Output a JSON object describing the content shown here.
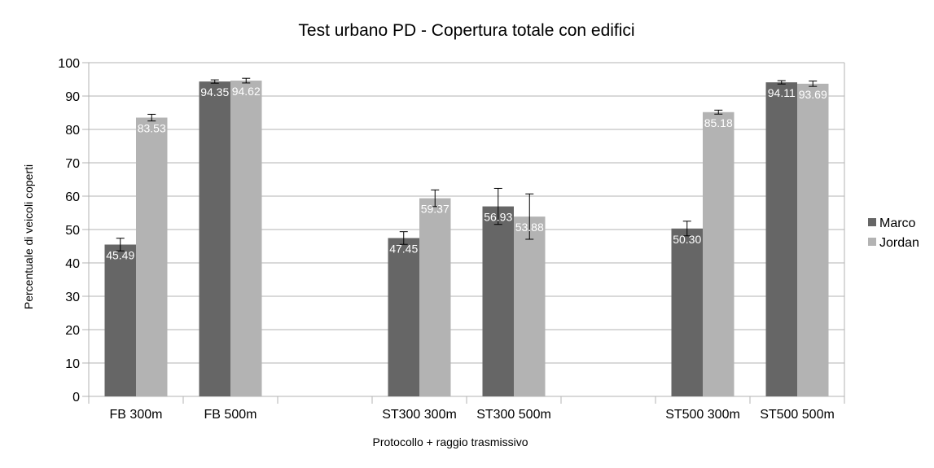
{
  "chart_data": {
    "type": "bar",
    "title": "Test urbano PD - Copertura totale con edifici",
    "xlabel": "Protocollo + raggio trasmissivo",
    "ylabel": "Percentuale di veicoli coperti",
    "ylim": [
      0,
      100
    ],
    "yticks": [
      "0",
      "10",
      "20",
      "30",
      "40",
      "50",
      "60",
      "70",
      "80",
      "90",
      "100"
    ],
    "grid": true,
    "legend_position": "right",
    "categories": [
      "FB 300m",
      "FB 500m",
      "",
      "ST300 300m",
      "ST300 500m",
      "",
      "ST500 300m",
      "ST500 500m"
    ],
    "series": [
      {
        "name": "Marco",
        "color": "#666666",
        "values": [
          45.49,
          94.35,
          null,
          47.45,
          56.93,
          null,
          50.3,
          94.11
        ],
        "labels": [
          "45.49",
          "94.35",
          "",
          "47.45",
          "56.93",
          "",
          "50.30",
          "94.11"
        ],
        "error": [
          1.9,
          0.5,
          null,
          1.9,
          5.4,
          null,
          2.2,
          0.5
        ]
      },
      {
        "name": "Jordan",
        "color": "#b3b3b3",
        "values": [
          83.53,
          94.62,
          null,
          59.37,
          53.88,
          null,
          85.18,
          93.69
        ],
        "labels": [
          "83.53",
          "94.62",
          "",
          "59.37",
          "53.88",
          "",
          "85.18",
          "93.69"
        ],
        "error": [
          1.0,
          0.7,
          null,
          2.5,
          6.8,
          null,
          0.6,
          0.8
        ]
      }
    ]
  }
}
